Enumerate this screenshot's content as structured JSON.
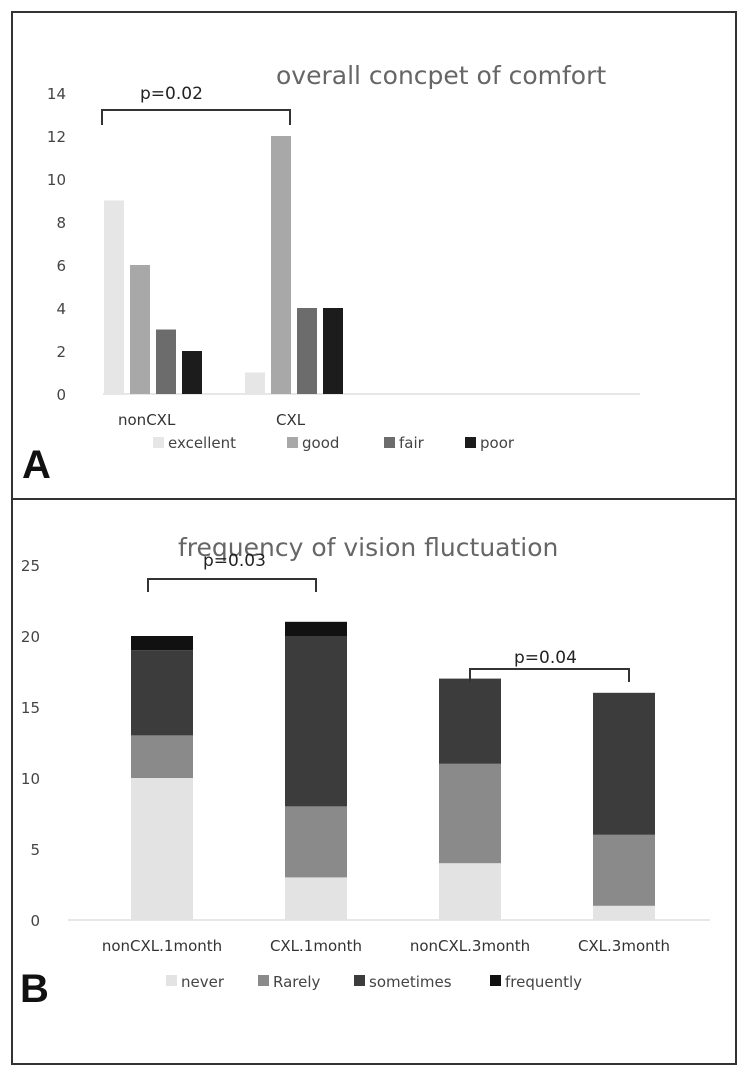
{
  "chart_data": [
    {
      "panel": "A",
      "type": "bar",
      "title": "overall concpet of comfort",
      "categories": [
        "nonCXL",
        "CXL"
      ],
      "series": [
        {
          "name": "excellent",
          "values": [
            9,
            1
          ],
          "color": "#e6e6e6"
        },
        {
          "name": "good",
          "values": [
            6,
            12
          ],
          "color": "#a8a8a8"
        },
        {
          "name": "fair",
          "values": [
            3,
            4
          ],
          "color": "#6c6c6c"
        },
        {
          "name": "poor",
          "values": [
            2,
            4
          ],
          "color": "#1c1c1c"
        }
      ],
      "ylim": [
        0,
        14
      ],
      "yticks": [
        0,
        2,
        4,
        6,
        8,
        10,
        12,
        14
      ],
      "legend_position": "bottom",
      "annotations": [
        {
          "text": "p=0.02",
          "from": "nonCXL",
          "to": "CXL"
        }
      ]
    },
    {
      "panel": "B",
      "type": "bar",
      "stacked": true,
      "title": "frequency of vision fluctuation",
      "categories": [
        "nonCXL.1month",
        "CXL.1month",
        "nonCXL.3month",
        "CXL.3month"
      ],
      "series": [
        {
          "name": "never",
          "values": [
            10,
            3,
            4,
            1
          ],
          "color": "#e3e3e3"
        },
        {
          "name": "Rarely",
          "values": [
            3,
            5,
            7,
            5
          ],
          "color": "#8a8a8a"
        },
        {
          "name": "sometimes",
          "values": [
            6,
            12,
            6,
            10
          ],
          "color": "#3c3c3c"
        },
        {
          "name": "frequently",
          "values": [
            1,
            1,
            0,
            0
          ],
          "color": "#111111"
        }
      ],
      "ylim": [
        0,
        25
      ],
      "yticks": [
        0,
        5,
        10,
        15,
        20,
        25
      ],
      "legend_position": "bottom",
      "annotations": [
        {
          "text": "p=0.03",
          "from": "nonCXL.1month",
          "to": "CXL.1month"
        },
        {
          "text": "p=0.04",
          "from": "nonCXL.3month",
          "to": "CXL.3month"
        }
      ]
    }
  ]
}
